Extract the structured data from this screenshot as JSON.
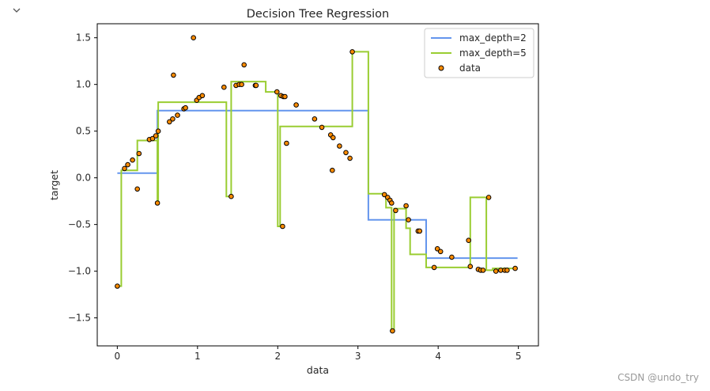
{
  "cell": {
    "collapse_icon": "chevron-down-icon",
    "watermark": "CSDN @undo_try"
  },
  "colors": {
    "depth2": "#6495ED",
    "depth5": "#9ACD32",
    "data_fill": "#FF8C00",
    "data_edge": "#000000"
  },
  "chart_data": {
    "type": "scatter",
    "title": "Decision Tree Regression",
    "xlabel": "data",
    "ylabel": "target",
    "xlim": [
      -0.25,
      5.25
    ],
    "ylim": [
      -1.8,
      1.65
    ],
    "xticks": [
      0,
      1,
      2,
      3,
      4,
      5
    ],
    "yticks": [
      -1.5,
      -1.0,
      -0.5,
      0.0,
      0.5,
      1.0,
      1.5
    ],
    "legend_position": "top-right",
    "series": [
      {
        "name": "max_depth=2",
        "kind": "step",
        "color": "#6495ED",
        "x": [
          0.0,
          0.5,
          0.5,
          3.13,
          3.13,
          3.85,
          3.85,
          4.99
        ],
        "y": [
          0.05,
          0.05,
          0.72,
          0.72,
          -0.45,
          -0.45,
          -0.86,
          -0.86
        ]
      },
      {
        "name": "max_depth=5",
        "kind": "step",
        "color": "#9ACD32",
        "x": [
          0.0,
          0.05,
          0.05,
          0.25,
          0.25,
          0.5,
          0.5,
          0.51,
          0.51,
          1.36,
          1.36,
          1.42,
          1.42,
          1.85,
          1.85,
          2.0,
          2.0,
          2.03,
          2.03,
          2.08,
          2.08,
          2.93,
          2.93,
          3.13,
          3.13,
          3.35,
          3.35,
          3.42,
          3.42,
          3.45,
          3.45,
          3.6,
          3.6,
          3.65,
          3.65,
          3.85,
          3.85,
          4.4,
          4.4,
          4.6,
          4.6,
          4.68,
          4.68,
          4.99
        ],
        "y": [
          -1.16,
          -1.16,
          0.08,
          0.08,
          0.4,
          0.4,
          -0.27,
          -0.27,
          0.81,
          0.81,
          -0.2,
          -0.2,
          1.03,
          1.03,
          0.92,
          0.92,
          -0.52,
          -0.52,
          0.55,
          0.55,
          0.55,
          0.55,
          1.35,
          1.35,
          -0.17,
          -0.17,
          -0.32,
          -0.32,
          -1.64,
          -1.64,
          -0.33,
          -0.33,
          -0.54,
          -0.54,
          -0.82,
          -0.82,
          -0.96,
          -0.96,
          -0.21,
          -0.21,
          -0.99,
          -0.99,
          -0.97,
          -0.97
        ]
      },
      {
        "name": "data",
        "kind": "scatter",
        "color": "#FF8C00",
        "x": [
          0.0,
          0.09,
          0.13,
          0.19,
          0.25,
          0.27,
          0.4,
          0.44,
          0.48,
          0.5,
          0.51,
          0.65,
          0.69,
          0.7,
          0.75,
          0.83,
          0.85,
          0.95,
          0.99,
          1.02,
          1.06,
          1.33,
          1.42,
          1.48,
          1.52,
          1.55,
          1.58,
          1.72,
          1.73,
          1.99,
          2.04,
          2.06,
          2.07,
          2.09,
          2.11,
          2.23,
          2.46,
          2.55,
          2.66,
          2.68,
          2.69,
          2.77,
          2.85,
          2.9,
          2.93,
          3.33,
          3.37,
          3.4,
          3.42,
          3.43,
          3.47,
          3.6,
          3.63,
          3.75,
          3.77,
          3.95,
          3.99,
          4.03,
          4.17,
          4.38,
          4.4,
          4.5,
          4.53,
          4.56,
          4.63,
          4.72,
          4.78,
          4.83,
          4.86,
          4.96
        ],
        "y": [
          -1.16,
          0.1,
          0.14,
          0.19,
          -0.12,
          0.26,
          0.41,
          0.42,
          0.45,
          -0.27,
          0.5,
          0.6,
          0.63,
          1.1,
          0.67,
          0.74,
          0.75,
          1.5,
          0.83,
          0.86,
          0.88,
          0.97,
          -0.2,
          0.99,
          1.0,
          1.0,
          1.21,
          0.99,
          0.99,
          0.92,
          0.88,
          -0.52,
          0.87,
          0.87,
          0.37,
          0.78,
          0.63,
          0.54,
          0.46,
          0.08,
          0.43,
          0.34,
          0.27,
          0.21,
          1.35,
          -0.18,
          -0.21,
          -0.24,
          -0.27,
          -1.64,
          -0.35,
          -0.3,
          -0.45,
          -0.57,
          -0.57,
          -0.96,
          -0.76,
          -0.79,
          -0.85,
          -0.67,
          -0.95,
          -0.98,
          -0.99,
          -0.99,
          -0.21,
          -1.0,
          -0.99,
          -0.99,
          -0.99,
          -0.97
        ]
      }
    ]
  }
}
